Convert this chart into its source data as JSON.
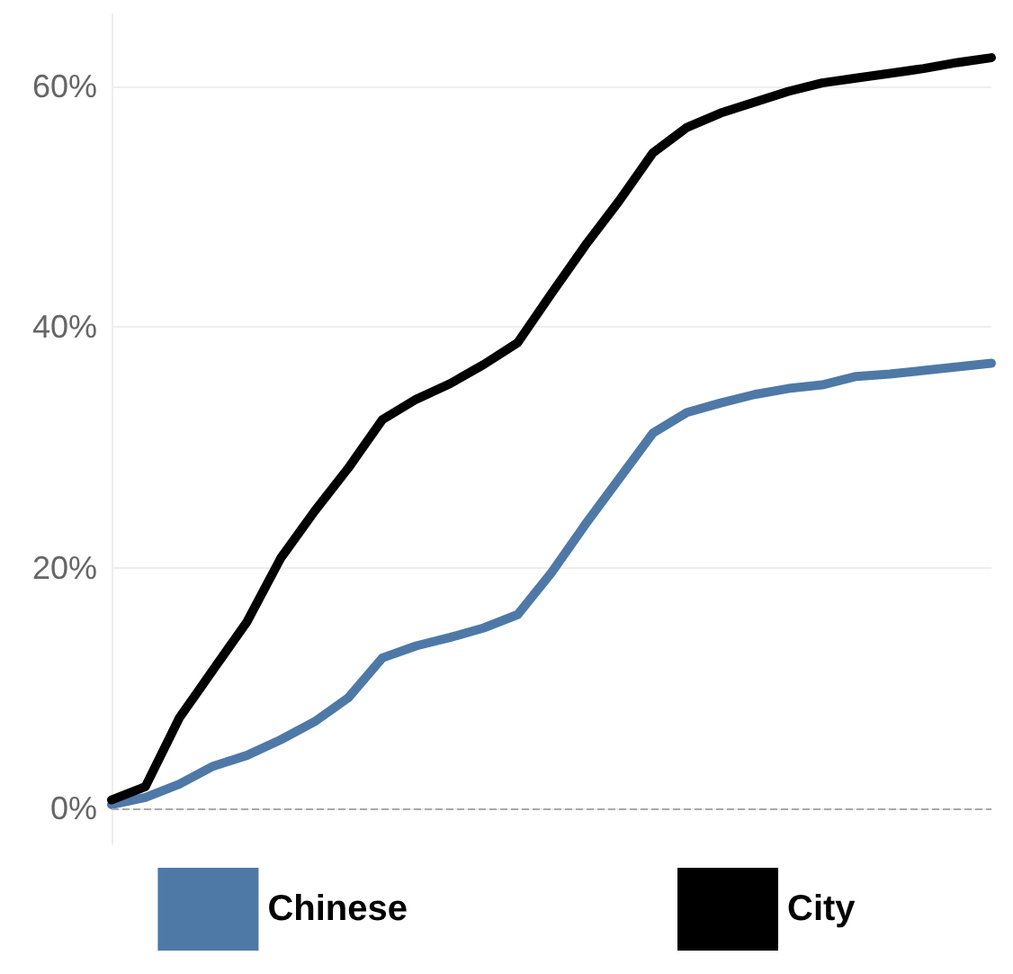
{
  "chart_data": {
    "type": "line",
    "categories": [
      null,
      null,
      null,
      null,
      null,
      null,
      null,
      null,
      null,
      null,
      null,
      null,
      null,
      null,
      null,
      null,
      null,
      null,
      null,
      null,
      null,
      null,
      null,
      null,
      null,
      null,
      null
    ],
    "series": [
      {
        "name": "Chinese",
        "color": "#4e79a7",
        "values": [
          0.3,
          0.9,
          2,
          3.5,
          4.4,
          5.7,
          7.2,
          9.2,
          12.5,
          13.5,
          14.2,
          15,
          16.1,
          19.6,
          23.6,
          27.4,
          31.2,
          32.9,
          33.7,
          34.4,
          34.9,
          35.2,
          35.9,
          36.1,
          36.4,
          36.7,
          37
        ]
      },
      {
        "name": "City",
        "color": "#000000",
        "values": [
          0.7,
          1.8,
          7.5,
          11.5,
          15.5,
          20.8,
          24.7,
          28.3,
          32.3,
          34,
          35.3,
          36.9,
          38.7,
          42.8,
          46.8,
          50.5,
          54.5,
          56.6,
          57.8,
          58.7,
          59.6,
          60.3,
          60.7,
          61.1,
          61.5,
          62,
          62.4
        ]
      }
    ],
    "ylim": [
      -3,
      66
    ],
    "yticks": [
      {
        "value": 0,
        "label": "0%"
      },
      {
        "value": 20,
        "label": "20%"
      },
      {
        "value": 40,
        "label": "40%"
      },
      {
        "value": 60,
        "label": "60%"
      }
    ],
    "tick_labels": "y",
    "grid": "y",
    "legend": "bottom",
    "marker": "none",
    "line_style": "solid",
    "ref_lines": [
      {
        "axis": "y",
        "value": 0,
        "label": null,
        "color": "#aaaaaa",
        "line_style": "dashed"
      }
    ]
  }
}
